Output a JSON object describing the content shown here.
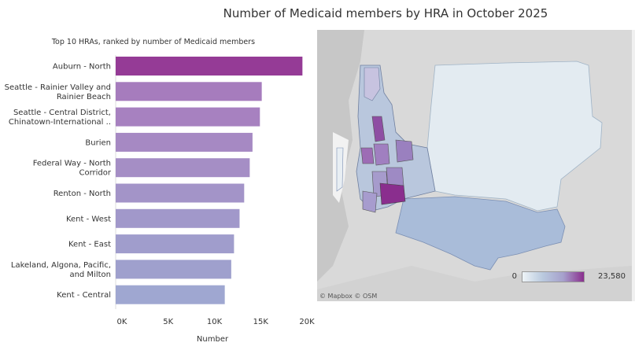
{
  "main_title": "Number of Medicaid members by HRA in October 2025",
  "chart_data": {
    "type": "bar",
    "orientation": "horizontal",
    "subtitle": "Top 10 HRAs, ranked by number of Medicaid members",
    "categories": [
      [
        "Auburn - North"
      ],
      [
        "Seattle - Rainier Valley and",
        "Rainier Beach"
      ],
      [
        "Seattle - Central District,",
        "Chinatown-International .."
      ],
      [
        "Burien"
      ],
      [
        "Federal Way - North",
        "Corridor"
      ],
      [
        "Renton - North"
      ],
      [
        "Kent - West"
      ],
      [
        "Kent - East"
      ],
      [
        "Lakeland, Algona, Pacific,",
        "and Milton"
      ],
      [
        "Kent - Central"
      ]
    ],
    "values": [
      20200,
      15800,
      15600,
      14800,
      14500,
      13900,
      13400,
      12800,
      12500,
      11800
    ],
    "bar_colors": [
      "#953b96",
      "#a67cbd",
      "#a781c0",
      "#a689c3",
      "#a58ec5",
      "#a394c8",
      "#a198ca",
      "#a09dcc",
      "#9fa0cd",
      "#9fa7d1"
    ],
    "xlabel": "Number",
    "xlim": [
      0,
      20000
    ],
    "xticks": [
      0,
      5000,
      10000,
      15000,
      20000
    ],
    "xtick_labels": [
      "0K",
      "5K",
      "10K",
      "15K",
      "20K"
    ]
  },
  "map": {
    "credit": "© Mapbox  © OSM",
    "legend_min": "0",
    "legend_max": "23,580"
  }
}
